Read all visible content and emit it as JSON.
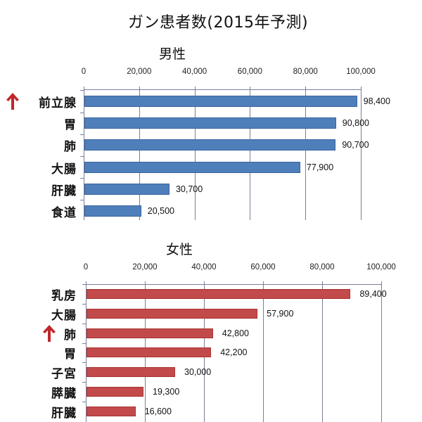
{
  "title": "ガン患者数(2015年予測)",
  "colors": {
    "male": "#4f7fba",
    "female": "#c24a4a",
    "arrow": "#c0262a"
  },
  "male": {
    "subtitle": "男性",
    "ticks": [
      "0",
      "20,000",
      "40,000",
      "60,000",
      "80,000",
      "100,000"
    ],
    "categories": [
      "前立腺",
      "胃",
      "肺",
      "大腸",
      "肝臓",
      "食道"
    ],
    "values": [
      98400,
      90800,
      90700,
      77900,
      30700,
      20500
    ],
    "labels": [
      "98,400",
      "90,800",
      "90,700",
      "77,900",
      "30,700",
      "20,500"
    ],
    "arrow_on": "前立腺"
  },
  "female": {
    "subtitle": "女性",
    "ticks": [
      "0",
      "20,000",
      "40,000",
      "60,000",
      "80,000",
      "100,000"
    ],
    "categories": [
      "乳房",
      "大腸",
      "肺",
      "胃",
      "子宮",
      "膵臓",
      "肝臓"
    ],
    "values": [
      89400,
      57900,
      42800,
      42200,
      30000,
      19300,
      16600
    ],
    "labels": [
      "89,400",
      "57,900",
      "42,800",
      "42,200",
      "30,000",
      "19,300",
      "16,600"
    ],
    "arrow_on": "肺"
  },
  "chart_data": [
    {
      "type": "bar",
      "orientation": "horizontal",
      "title": "ガン患者数(2015年予測) - 男性",
      "categories": [
        "前立腺",
        "胃",
        "肺",
        "大腸",
        "肝臓",
        "食道"
      ],
      "values": [
        98400,
        90800,
        90700,
        77900,
        30700,
        20500
      ],
      "xlabel": "",
      "ylabel": "",
      "xlim": [
        0,
        100000
      ],
      "xticks": [
        0,
        20000,
        40000,
        60000,
        80000,
        100000
      ],
      "grid": true,
      "data_labels": true,
      "color": "#4f7fba",
      "annotations": [
        "red up-arrow next to 前立腺"
      ]
    },
    {
      "type": "bar",
      "orientation": "horizontal",
      "title": "ガン患者数(2015年予測) - 女性",
      "categories": [
        "乳房",
        "大腸",
        "肺",
        "胃",
        "子宮",
        "膵臓",
        "肝臓"
      ],
      "values": [
        89400,
        57900,
        42800,
        42200,
        30000,
        19300,
        16600
      ],
      "xlabel": "",
      "ylabel": "",
      "xlim": [
        0,
        100000
      ],
      "xticks": [
        0,
        20000,
        40000,
        60000,
        80000,
        100000
      ],
      "grid": true,
      "data_labels": true,
      "color": "#c24a4a",
      "annotations": [
        "red up-arrow next to 肺"
      ]
    }
  ]
}
